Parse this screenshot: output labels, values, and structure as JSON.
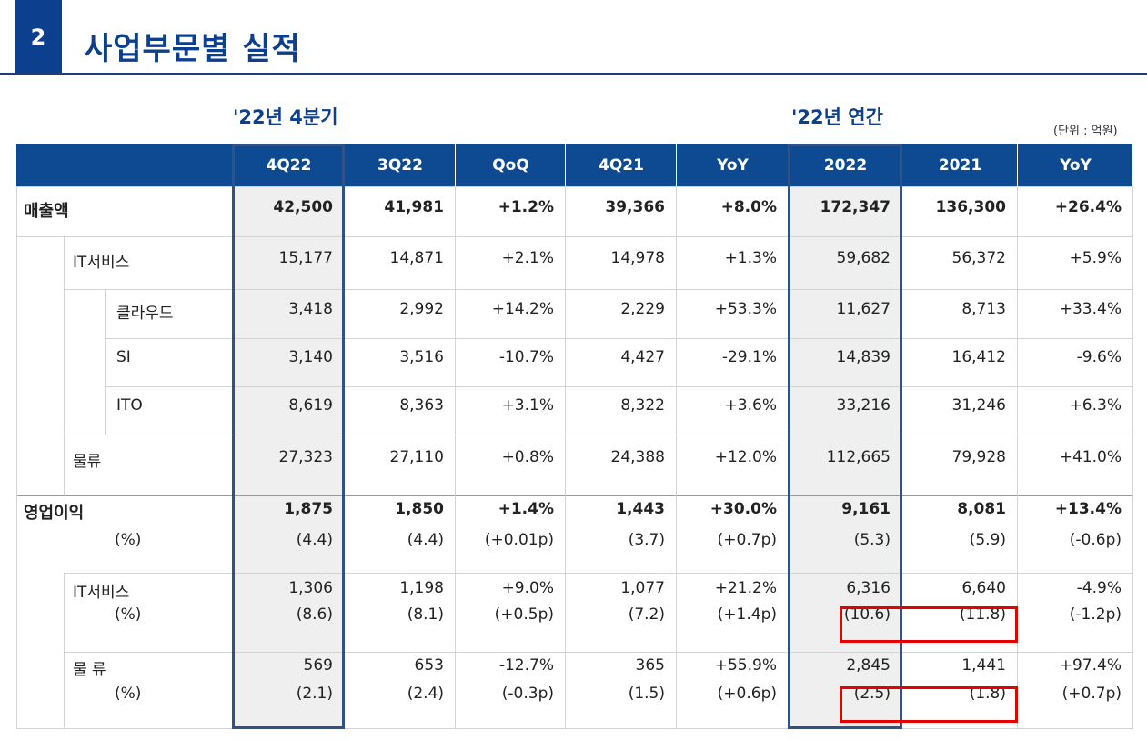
{
  "section": {
    "number": "2",
    "title": "사업부문별 실적"
  },
  "periods": {
    "quarter": "'22년 4분기",
    "annual": "'22년 연간"
  },
  "unit": "(단위 : 억원)",
  "columns": [
    "4Q22",
    "3Q22",
    "QoQ",
    "4Q21",
    "YoY",
    "2022",
    "2021",
    "YoY"
  ],
  "rows": [
    {
      "label": "매출액",
      "values": [
        "42,500",
        "41,981",
        "+1.2%",
        "39,366",
        "+8.0%",
        "172,347",
        "136,300",
        "+26.4%"
      ]
    },
    {
      "label": "IT서비스",
      "values": [
        "15,177",
        "14,871",
        "+2.1%",
        "14,978",
        "+1.3%",
        "59,682",
        "56,372",
        "+5.9%"
      ]
    },
    {
      "label": "클라우드",
      "values": [
        "3,418",
        "2,992",
        "+14.2%",
        "2,229",
        "+53.3%",
        "11,627",
        "8,713",
        "+33.4%"
      ]
    },
    {
      "label": "SI",
      "values": [
        "3,140",
        "3,516",
        "-10.7%",
        "4,427",
        "-29.1%",
        "14,839",
        "16,412",
        "-9.6%"
      ]
    },
    {
      "label": "ITO",
      "values": [
        "8,619",
        "8,363",
        "+3.1%",
        "8,322",
        "+3.6%",
        "33,216",
        "31,246",
        "+6.3%"
      ]
    },
    {
      "label": "물류",
      "values": [
        "27,323",
        "27,110",
        "+0.8%",
        "24,388",
        "+12.0%",
        "112,665",
        "79,928",
        "+41.0%"
      ]
    },
    {
      "label": "영업이익",
      "values": [
        "1,875",
        "1,850",
        "+1.4%",
        "1,443",
        "+30.0%",
        "9,161",
        "8,081",
        "+13.4%"
      ]
    },
    {
      "label": "(%)",
      "values": [
        "(4.4)",
        "(4.4)",
        "(+0.01p)",
        "(3.7)",
        "(+0.7p)",
        "(5.3)",
        "(5.9)",
        "(-0.6p)"
      ]
    },
    {
      "label": "IT서비스",
      "values": [
        "1,306",
        "1,198",
        "+9.0%",
        "1,077",
        "+21.2%",
        "6,316",
        "6,640",
        "-4.9%"
      ]
    },
    {
      "label": "(%)",
      "values": [
        "(8.6)",
        "(8.1)",
        "(+0.5p)",
        "(7.2)",
        "(+1.4p)",
        "(10.6)",
        "(11.8)",
        "(-1.2p)"
      ]
    },
    {
      "label": "물 류",
      "values": [
        "569",
        "653",
        "-12.7%",
        "365",
        "+55.9%",
        "2,845",
        "1,441",
        "+97.4%"
      ]
    },
    {
      "label": "(%)",
      "values": [
        "(2.1)",
        "(2.4)",
        "(-0.3p)",
        "(1.5)",
        "(+0.6p)",
        "(2.5)",
        "(1.8)",
        "(+0.7p)"
      ]
    }
  ],
  "colors": {
    "brand": "#0d4a91",
    "highlight": "#e60000",
    "frame": "#2f5388"
  }
}
